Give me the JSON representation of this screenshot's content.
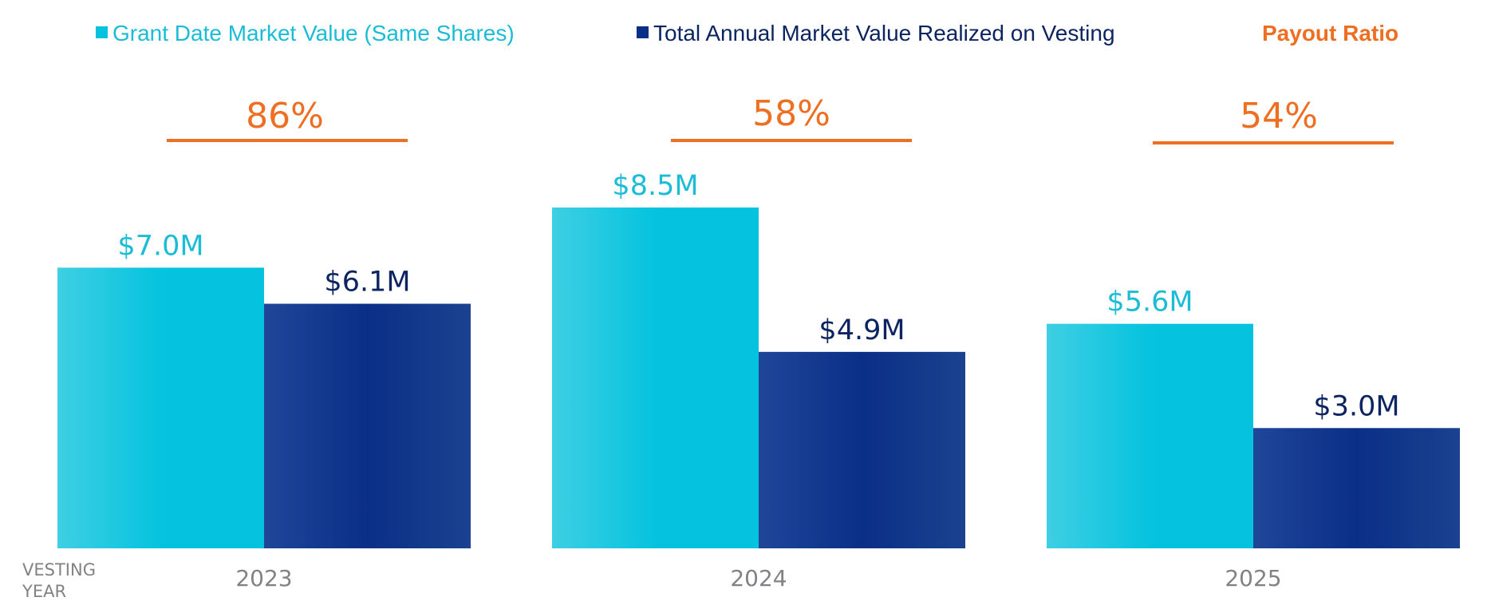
{
  "chart_data": {
    "type": "bar",
    "categories": [
      "2023",
      "2024",
      "2025"
    ],
    "series": [
      {
        "name": "Grant Date Market Value (Same Shares)",
        "values": [
          7.0,
          8.5,
          5.6
        ],
        "labels": [
          "$7.0M",
          "$8.5M",
          "$5.6M"
        ],
        "color": "#05C3DE"
      },
      {
        "name": "Total Annual Market Value Realized on Vesting",
        "values": [
          6.1,
          4.9,
          3.0
        ],
        "labels": [
          "$6.1M",
          "$4.9M",
          "$3.0M"
        ],
        "color": "#0A2F87"
      }
    ],
    "payout_ratio": {
      "title": "Payout Ratio",
      "values": [
        "86%",
        "58%",
        "54%"
      ],
      "color": "#EE6E22"
    },
    "xlabel_lines": [
      "VESTING",
      "YEAR"
    ],
    "ylabel": "",
    "ylim": [
      0,
      8.5
    ],
    "grid": false,
    "legend_position": "top"
  },
  "colors": {
    "light_label": "#1BBCD6",
    "dark_label": "#0C2461",
    "legend_light_text": "#1BBCD6",
    "legend_dark_text": "#0C2461",
    "tick": "#808285"
  }
}
